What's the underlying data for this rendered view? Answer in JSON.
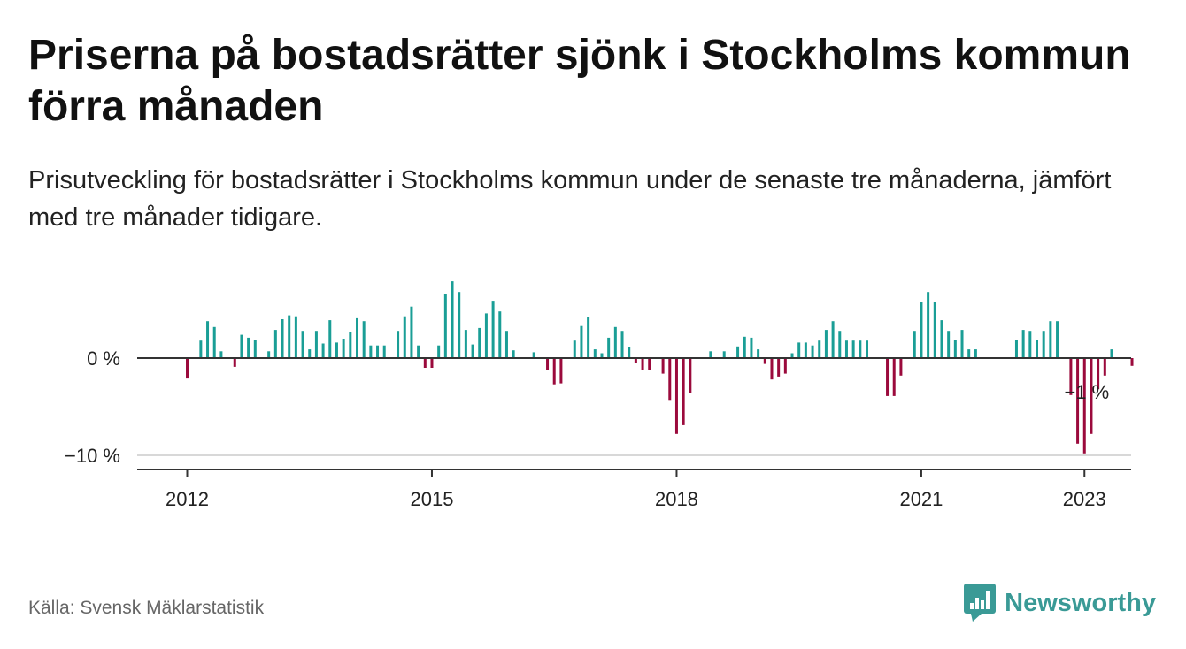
{
  "title": "Priserna på bostadsrätter sjönk i Stockholms kommun förra månaden",
  "subtitle": "Prisutveckling för bostadsrätter i Stockholms kommun under de senaste tre månaderna, jämfört med tre månader tidigare.",
  "source": "Källa: Svensk Mäklarstatistik",
  "brand": {
    "name": "Newsworthy",
    "icon": "newsworthy-logo-icon",
    "color": "#3a9a96"
  },
  "colors": {
    "positive": "#1a9e96",
    "negative": "#9b0a3c",
    "axis": "#333333",
    "grid": "#cccccc"
  },
  "chart_data": {
    "type": "bar",
    "title": "",
    "xlabel": "",
    "ylabel": "",
    "x_start": "2012-01",
    "x_frequency": "monthly",
    "x_ticks": [
      "2012",
      "2015",
      "2018",
      "2021",
      "2023"
    ],
    "y_ticks": [
      {
        "value": 0,
        "label": "0 %"
      },
      {
        "value": -10,
        "label": "−10 %"
      }
    ],
    "ylim": [
      -11.5,
      8.5
    ],
    "annotation": {
      "text": "−1 %",
      "value": -1,
      "month": "2023-01"
    },
    "values": [
      -2.1,
      0,
      1.8,
      3.8,
      3.2,
      0.7,
      0,
      -0.9,
      2.4,
      2.1,
      1.9,
      0,
      0.7,
      2.9,
      4.0,
      4.4,
      4.3,
      2.8,
      0.9,
      2.8,
      1.5,
      3.9,
      1.6,
      2.0,
      2.7,
      4.1,
      3.8,
      1.3,
      1.3,
      1.3,
      0,
      2.8,
      4.3,
      5.3,
      1.3,
      -1.0,
      -1.0,
      1.3,
      6.6,
      7.9,
      6.8,
      2.9,
      1.4,
      3.1,
      4.6,
      5.9,
      4.8,
      2.8,
      0.8,
      0,
      0,
      0.6,
      0,
      -1.2,
      -2.7,
      -2.6,
      0,
      1.8,
      3.3,
      4.2,
      0.9,
      0.5,
      2.1,
      3.2,
      2.8,
      1.1,
      -0.5,
      -1.2,
      -1.2,
      0,
      -1.6,
      -4.3,
      -7.8,
      -6.9,
      -3.6,
      0,
      0,
      0.7,
      0,
      0.7,
      0,
      1.2,
      2.2,
      2.1,
      0.9,
      -0.6,
      -2.2,
      -1.9,
      -1.6,
      0.5,
      1.6,
      1.6,
      1.3,
      1.8,
      2.9,
      3.8,
      2.8,
      1.8,
      1.8,
      1.8,
      1.8,
      0,
      0,
      -3.9,
      -3.9,
      -1.8,
      0,
      2.8,
      5.8,
      6.8,
      5.8,
      3.9,
      2.8,
      1.9,
      2.9,
      0.9,
      0.9,
      0,
      0,
      0,
      0,
      0,
      1.9,
      2.9,
      2.8,
      1.9,
      2.8,
      3.8,
      3.8,
      0,
      -3.8,
      -8.8,
      -9.8,
      -7.8,
      -3.2,
      -1.8,
      0.9,
      0,
      0,
      -0.8
    ]
  }
}
